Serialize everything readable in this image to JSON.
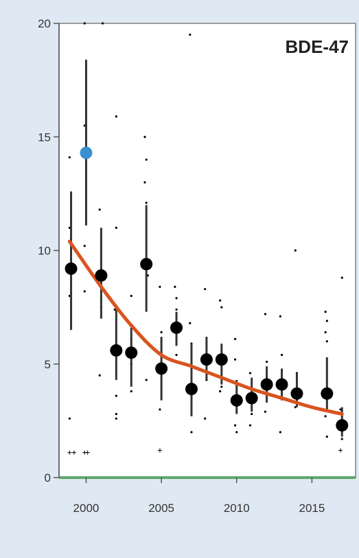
{
  "chart_data": {
    "type": "scatter",
    "title": "BDE-47",
    "xlabel": "",
    "ylabel": "",
    "xlim": [
      1998.2,
      2017.9
    ],
    "ylim": [
      0,
      20
    ],
    "xticks": [
      2000,
      2005,
      2010,
      2015
    ],
    "xtick_labels": [
      "2000",
      "2005",
      "2010",
      "2015"
    ],
    "yticks": [
      0,
      5,
      10,
      15,
      20
    ],
    "ytick_labels": [
      "0",
      "5",
      "10",
      "15",
      "20"
    ],
    "grid": false,
    "legend": "none",
    "colors": {
      "background": "#dfe9f3",
      "panel": "#ffffff",
      "points": "#000000",
      "outlier_mean": "#3a8fd0",
      "fit_line": "#d9541e",
      "baseline": "#5fa868"
    },
    "series": [
      {
        "kind": "annual_means",
        "x": [
          1999,
          2000,
          2001,
          2002,
          2003,
          2004,
          2005,
          2006,
          2007,
          2008,
          2009,
          2010,
          2011,
          2012,
          2013,
          2014,
          2016,
          2017
        ],
        "y": [
          9.2,
          14.3,
          8.9,
          5.6,
          5.5,
          9.4,
          4.8,
          6.6,
          3.9,
          5.2,
          5.2,
          3.4,
          3.5,
          4.1,
          4.1,
          3.7,
          3.7,
          2.3
        ],
        "err_low": [
          6.5,
          11.1,
          7.0,
          4.3,
          4.0,
          7.3,
          3.4,
          5.8,
          2.7,
          4.3,
          4.1,
          2.8,
          2.9,
          3.3,
          3.4,
          3.1,
          2.9,
          1.8
        ],
        "err_high": [
          12.6,
          18.4,
          11.0,
          7.6,
          6.6,
          12.0,
          6.2,
          7.3,
          5.9,
          6.2,
          5.9,
          4.3,
          4.4,
          4.9,
          4.8,
          4.6,
          5.3,
          3.1
        ],
        "highlight_index": 1
      },
      {
        "kind": "individual_samples",
        "points": [
          [
            1998.9,
            14.1
          ],
          [
            1998.9,
            11.0
          ],
          [
            1998.9,
            8.0
          ],
          [
            1998.9,
            2.6
          ],
          [
            1998.9,
            1.1
          ],
          [
            1999.2,
            1.1
          ],
          [
            1999.9,
            20.0
          ],
          [
            1999.9,
            15.5
          ],
          [
            1999.9,
            10.2
          ],
          [
            1999.9,
            8.2
          ],
          [
            1999.9,
            1.1
          ],
          [
            2000.1,
            1.1
          ],
          [
            2001.1,
            20.0
          ],
          [
            2000.9,
            11.8
          ],
          [
            2001.0,
            7.5
          ],
          [
            2000.9,
            4.5
          ],
          [
            2002.0,
            15.9
          ],
          [
            2002.0,
            11.0
          ],
          [
            2001.9,
            7.4
          ],
          [
            2002.0,
            3.6
          ],
          [
            2002.0,
            2.8
          ],
          [
            2002.0,
            2.6
          ],
          [
            2003.0,
            8.0
          ],
          [
            2003.0,
            6.1
          ],
          [
            2003.0,
            5.0
          ],
          [
            2003.0,
            3.8
          ],
          [
            2003.9,
            15.0
          ],
          [
            2004.0,
            14.0
          ],
          [
            2003.9,
            13.0
          ],
          [
            2004.0,
            12.1
          ],
          [
            2004.1,
            8.9
          ],
          [
            2003.9,
            6.0
          ],
          [
            2004.0,
            4.3
          ],
          [
            2004.9,
            8.4
          ],
          [
            2005.0,
            6.4
          ],
          [
            2004.9,
            3.0
          ],
          [
            2004.9,
            1.2
          ],
          [
            2005.9,
            8.4
          ],
          [
            2006.0,
            7.9
          ],
          [
            2006.0,
            7.4
          ],
          [
            2006.0,
            5.4
          ],
          [
            2005.9,
            5.1
          ],
          [
            2006.9,
            19.5
          ],
          [
            2006.9,
            6.8
          ],
          [
            2007.0,
            5.9
          ],
          [
            2007.0,
            2.0
          ],
          [
            2007.9,
            8.3
          ],
          [
            2008.0,
            4.3
          ],
          [
            2007.9,
            2.6
          ],
          [
            2008.9,
            7.8
          ],
          [
            2009.0,
            7.5
          ],
          [
            2008.9,
            5.4
          ],
          [
            2009.0,
            4.0
          ],
          [
            2008.9,
            3.8
          ],
          [
            2009.9,
            6.1
          ],
          [
            2009.9,
            5.2
          ],
          [
            2009.9,
            2.3
          ],
          [
            2010.0,
            2.0
          ],
          [
            2010.9,
            4.6
          ],
          [
            2011.0,
            2.8
          ],
          [
            2010.9,
            2.3
          ],
          [
            2011.9,
            7.2
          ],
          [
            2012.0,
            5.1
          ],
          [
            2011.9,
            2.9
          ],
          [
            2012.9,
            7.1
          ],
          [
            2013.0,
            5.4
          ],
          [
            2012.9,
            2.0
          ],
          [
            2013.9,
            10.0
          ],
          [
            2014.0,
            4.6
          ],
          [
            2013.9,
            3.1
          ],
          [
            2015.9,
            7.3
          ],
          [
            2016.0,
            6.9
          ],
          [
            2015.9,
            6.4
          ],
          [
            2016.0,
            6.0
          ],
          [
            2015.9,
            2.7
          ],
          [
            2016.0,
            1.8
          ],
          [
            2017.0,
            8.8
          ],
          [
            2016.9,
            3.0
          ],
          [
            2017.0,
            1.7
          ],
          [
            2016.9,
            1.2
          ]
        ]
      },
      {
        "kind": "trend_fit",
        "x": [
          1998.9,
          2001,
          2003,
          2005,
          2007,
          2009,
          2011,
          2013,
          2015,
          2017
        ],
        "y": [
          10.4,
          8.4,
          6.7,
          5.4,
          4.9,
          4.4,
          3.9,
          3.5,
          3.1,
          2.8
        ]
      }
    ]
  }
}
